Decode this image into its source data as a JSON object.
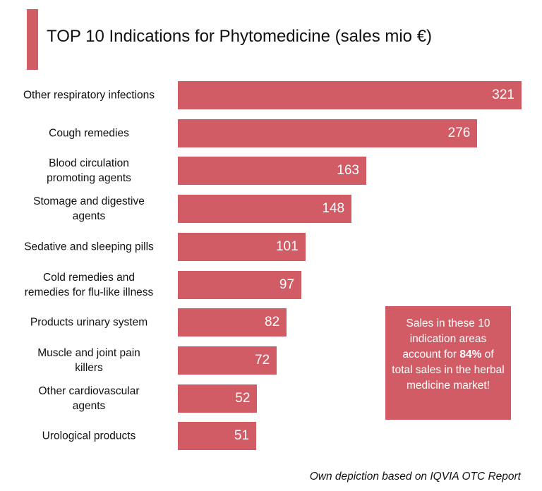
{
  "title": "TOP 10 Indications for Phytomedicine (sales mio €)",
  "colors": {
    "accent": "#d15c66"
  },
  "chart_data": {
    "type": "bar",
    "orientation": "horizontal",
    "title": "TOP 10 Indications for Phytomedicine (sales mio €)",
    "categories": [
      "Other respiratory infections",
      "Cough remedies",
      "Blood circulation promoting agents",
      "Stomage and digestive agents",
      "Sedative and sleeping pills",
      "Cold remedies and remedies for flu-like illness",
      "Products urinary system",
      "Muscle and joint pain killers",
      "Other cardiovascular agents",
      "Urological products"
    ],
    "labels": [
      [
        "Other respiratory infections"
      ],
      [
        "Cough remedies"
      ],
      [
        "Blood circulation",
        "promoting agents"
      ],
      [
        "Stomage and digestive",
        "agents"
      ],
      [
        "Sedative and sleeping pills"
      ],
      [
        "Cold remedies and",
        "remedies for flu-like illness"
      ],
      [
        "Products urinary system"
      ],
      [
        "Muscle and joint pain",
        "killers"
      ],
      [
        "Other cardiovascular",
        "agents"
      ],
      [
        "Urological products"
      ]
    ],
    "values": [
      321,
      276,
      163,
      148,
      101,
      97,
      82,
      72,
      52,
      51
    ],
    "xlabel": "",
    "ylabel": "",
    "grid": false
  },
  "note": {
    "before": "Sales in these 10 indication areas account for ",
    "bold": "84%",
    "after": " of total sales in the herbal medicine market!"
  },
  "source": "Own depiction based on IQVIA OTC Report"
}
